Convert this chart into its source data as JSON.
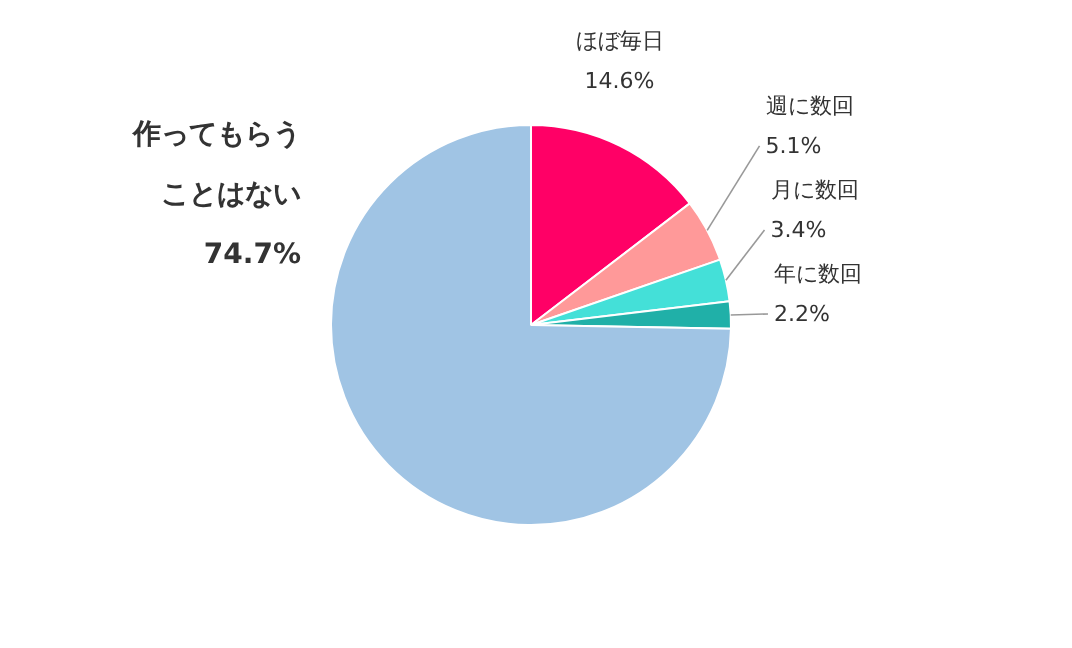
{
  "chart_data": {
    "type": "pie",
    "categories": [
      "ほぼ毎日",
      "週に数回",
      "月に数回",
      "年に数回",
      "作ってもらうことはない"
    ],
    "values": [
      14.6,
      5.1,
      3.4,
      2.2,
      74.7
    ],
    "colors": [
      "#ff0066",
      "#ff9999",
      "#44e0d8",
      "#20b0a8",
      "#a0c4e4"
    ],
    "value_labels": [
      "14.6%",
      "5.1%",
      "3.4%",
      "2.2%",
      "74.7%"
    ]
  }
}
